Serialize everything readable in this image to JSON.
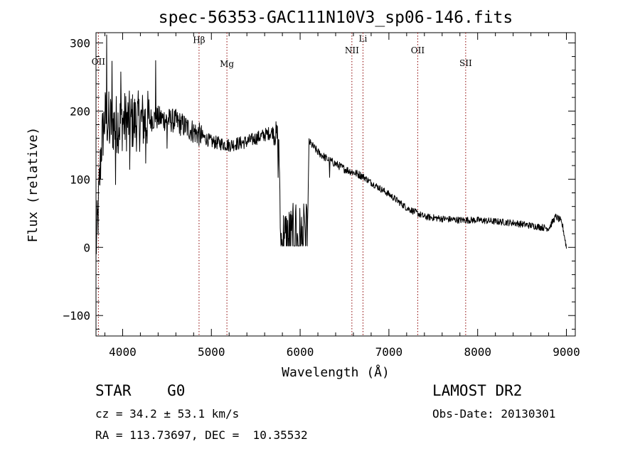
{
  "chart_data": {
    "type": "line",
    "title": "spec-56353-GAC111N10V3_sp06-146.fits",
    "xlabel": "Wavelength (Å)",
    "ylabel": "Flux (relative)",
    "xlim": [
      3700,
      9100
    ],
    "ylim": [
      -130,
      315
    ],
    "x_ticks": [
      4000,
      5000,
      6000,
      7000,
      8000,
      9000
    ],
    "x_tick_labels": [
      "4000",
      "5000",
      "6000",
      "7000",
      "8000",
      "9000"
    ],
    "y_ticks": [
      -100,
      0,
      100,
      200,
      300
    ],
    "y_tick_labels": [
      "−100",
      "0",
      "100",
      "200",
      "300"
    ],
    "grid": false,
    "line_color": "#000000",
    "marker_color": "#8b0000",
    "lines": [
      {
        "label": "OII",
        "x": 3727,
        "label_y": 268
      },
      {
        "label": "Hβ",
        "x": 4861,
        "label_y": 300
      },
      {
        "label": "Mg",
        "x": 5175,
        "label_y": 265
      },
      {
        "label": "NII",
        "x": 6583,
        "label_y": 285
      },
      {
        "label": "Li",
        "x": 6708,
        "label_y": 302
      },
      {
        "label": "OII",
        "x": 7325,
        "label_y": 285
      },
      {
        "label": "SII",
        "x": 7865,
        "label_y": 266
      }
    ],
    "spectrum": {
      "knots": [
        [
          3700,
          0
        ],
        [
          3720,
          40
        ],
        [
          3760,
          150
        ],
        [
          3800,
          190
        ],
        [
          3900,
          180
        ],
        [
          4000,
          185
        ],
        [
          4200,
          185
        ],
        [
          4400,
          190
        ],
        [
          4600,
          185
        ],
        [
          4800,
          170
        ],
        [
          5000,
          155
        ],
        [
          5200,
          150
        ],
        [
          5400,
          155
        ],
        [
          5600,
          165
        ],
        [
          5700,
          170
        ],
        [
          5760,
          160
        ],
        [
          5780,
          5
        ],
        [
          6080,
          5
        ],
        [
          6100,
          155
        ],
        [
          6200,
          140
        ],
        [
          6300,
          130
        ],
        [
          6500,
          115
        ],
        [
          6700,
          105
        ],
        [
          6800,
          95
        ],
        [
          7000,
          78
        ],
        [
          7200,
          58
        ],
        [
          7400,
          45
        ],
        [
          7600,
          42
        ],
        [
          7800,
          40
        ],
        [
          8000,
          40
        ],
        [
          8200,
          38
        ],
        [
          8400,
          36
        ],
        [
          8600,
          32
        ],
        [
          8800,
          28
        ],
        [
          8880,
          45
        ],
        [
          8930,
          40
        ],
        [
          8960,
          30
        ],
        [
          9000,
          0
        ]
      ],
      "noisy": [
        [
          3700,
          4300,
          45
        ],
        [
          4300,
          4900,
          18
        ],
        [
          4900,
          5700,
          10
        ],
        [
          5700,
          5780,
          20
        ],
        [
          5780,
          6080,
          60
        ],
        [
          6080,
          6700,
          6
        ],
        [
          6700,
          9000,
          5
        ]
      ],
      "spikes": [
        [
          3820,
          95
        ],
        [
          3850,
          -55
        ],
        [
          3880,
          60
        ],
        [
          3920,
          -80
        ],
        [
          3980,
          70
        ],
        [
          4080,
          -70
        ],
        [
          4260,
          -50
        ],
        [
          4370,
          95
        ],
        [
          4500,
          -45
        ],
        [
          5750,
          -70
        ],
        [
          5820,
          55
        ],
        [
          5950,
          75
        ],
        [
          6050,
          70
        ],
        [
          6330,
          -30
        ]
      ]
    }
  },
  "info": {
    "class_line": "STAR    G0",
    "survey": "LAMOST DR2",
    "cz": "cz = 34.2 ± 53.1 km/s",
    "obs_date": "Obs-Date: 20130301",
    "radec": "RA = 113.73697, DEC =  10.35532"
  }
}
